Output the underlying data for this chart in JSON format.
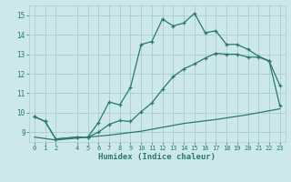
{
  "xlabel": "Humidex (Indice chaleur)",
  "bg_color": "#cce8e8",
  "grid_color": "#aacccc",
  "line_color": "#2a7a6a",
  "line1_x": [
    0,
    1,
    2,
    4,
    5,
    6,
    7,
    8,
    9,
    10,
    11,
    12,
    13,
    14,
    15,
    16,
    17,
    18,
    19,
    20,
    21,
    22,
    23
  ],
  "line1_y": [
    9.8,
    9.55,
    8.65,
    8.75,
    8.75,
    9.5,
    10.55,
    10.4,
    11.3,
    13.5,
    13.65,
    14.8,
    14.45,
    14.6,
    15.1,
    14.1,
    14.2,
    13.5,
    13.5,
    13.25,
    12.9,
    12.65,
    11.4
  ],
  "line2_x": [
    0,
    1,
    2,
    4,
    5,
    6,
    7,
    8,
    9,
    10,
    11,
    12,
    13,
    14,
    15,
    16,
    17,
    18,
    19,
    20,
    21,
    22,
    23
  ],
  "line2_y": [
    9.8,
    9.55,
    8.65,
    8.75,
    8.75,
    9.0,
    9.4,
    9.6,
    9.55,
    10.05,
    10.5,
    11.2,
    11.85,
    12.25,
    12.5,
    12.8,
    13.05,
    13.0,
    13.0,
    12.85,
    12.85,
    12.65,
    10.35
  ],
  "line3_x": [
    0,
    2,
    4,
    7,
    10,
    14,
    17,
    20,
    21,
    23
  ],
  "line3_y": [
    8.75,
    8.6,
    8.7,
    8.85,
    9.05,
    9.45,
    9.65,
    9.9,
    10.0,
    10.2
  ],
  "xlim": [
    -0.5,
    23.5
  ],
  "ylim": [
    8.5,
    15.5
  ],
  "yticks": [
    9,
    10,
    11,
    12,
    13,
    14,
    15
  ],
  "xticks": [
    0,
    1,
    2,
    4,
    5,
    6,
    7,
    8,
    9,
    10,
    11,
    12,
    13,
    14,
    15,
    16,
    17,
    18,
    19,
    20,
    21,
    22,
    23
  ]
}
